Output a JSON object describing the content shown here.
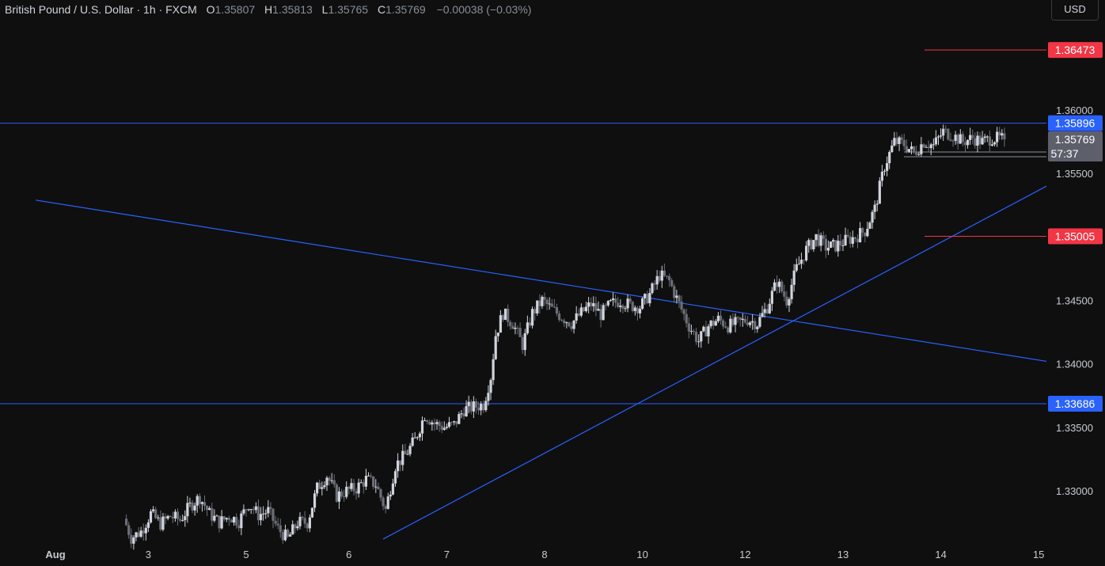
{
  "header": {
    "symbol": "British Pound / U.S. Dollar · 1h · FXCM",
    "open_label": "O",
    "open": "1.35807",
    "high_label": "H",
    "high": "1.35813",
    "low_label": "L",
    "low": "1.35765",
    "close_label": "C",
    "close": "1.35769",
    "change": "−0.00038 (−0.03%)"
  },
  "currency_button": "USD",
  "colors": {
    "background": "#0f0f0f",
    "candle_up": "#d1d4dc",
    "candle_down": "#6b6f78",
    "blue_level": "#2962ff",
    "red_level": "#f23645",
    "current_price_badge": "#5d606b"
  },
  "chart_data": {
    "type": "candlestick",
    "y_axis": {
      "min": 1.3262,
      "max": 1.3672,
      "ticks": [
        "1.36000",
        "1.35500",
        "1.35000",
        "1.34500",
        "1.34000",
        "1.33500",
        "1.33000"
      ]
    },
    "x_axis": {
      "labels": [
        {
          "text": "Aug",
          "x": 0
        },
        {
          "text": "3",
          "x": 19
        },
        {
          "text": "5",
          "x": 39
        },
        {
          "text": "6",
          "x": 60
        },
        {
          "text": "7",
          "x": 80
        },
        {
          "text": "8",
          "x": 100
        },
        {
          "text": "10",
          "x": 120
        },
        {
          "text": "12",
          "x": 141
        },
        {
          "text": "13",
          "x": 161
        },
        {
          "text": "14",
          "x": 181
        },
        {
          "text": "15",
          "x": 201
        }
      ]
    },
    "levels": [
      {
        "label": "1.36473",
        "value": 1.36473,
        "color": "red",
        "style": "short"
      },
      {
        "label": "1.35896",
        "value": 1.35896,
        "color": "blue",
        "style": "full"
      },
      {
        "label": "1.35005",
        "value": 1.35005,
        "color": "red",
        "style": "short"
      },
      {
        "label": "1.33686",
        "value": 1.33686,
        "color": "blue",
        "style": "full"
      }
    ],
    "current_price": {
      "label": "1.35769",
      "countdown": "57:37",
      "value": 1.35769
    },
    "trendlines": [
      {
        "name": "descending",
        "from": {
          "x": -4,
          "y": 1.3529
        },
        "to": {
          "x": 212,
          "y": 1.3402
        }
      },
      {
        "name": "ascending",
        "from": {
          "x": 67,
          "y": 1.3262
        },
        "to": {
          "x": 212,
          "y": 1.354
        }
      }
    ],
    "anchors": [
      [
        14.5,
        1.3278
      ],
      [
        16,
        1.3263
      ],
      [
        18,
        1.3268
      ],
      [
        20,
        1.3282
      ],
      [
        22,
        1.3274
      ],
      [
        24,
        1.328
      ],
      [
        26,
        1.3277
      ],
      [
        28,
        1.3288
      ],
      [
        30,
        1.3295
      ],
      [
        32,
        1.3282
      ],
      [
        34,
        1.3275
      ],
      [
        36,
        1.328
      ],
      [
        38,
        1.3276
      ],
      [
        40,
        1.329
      ],
      [
        42,
        1.3281
      ],
      [
        44,
        1.3284
      ],
      [
        46,
        1.327
      ],
      [
        48,
        1.3262
      ],
      [
        50,
        1.3275
      ],
      [
        52,
        1.3275
      ],
      [
        54,
        1.3302
      ],
      [
        56,
        1.3312
      ],
      [
        58,
        1.3296
      ],
      [
        60,
        1.33
      ],
      [
        62,
        1.3302
      ],
      [
        64,
        1.3309
      ],
      [
        66,
        1.3305
      ],
      [
        68,
        1.3285
      ],
      [
        70,
        1.332
      ],
      [
        72,
        1.3328
      ],
      [
        74,
        1.334
      ],
      [
        76,
        1.336
      ],
      [
        78,
        1.3353
      ],
      [
        80,
        1.335
      ],
      [
        82,
        1.3352
      ],
      [
        84,
        1.3364
      ],
      [
        86,
        1.3366
      ],
      [
        88,
        1.3368
      ],
      [
        89.5,
        1.339
      ],
      [
        90.5,
        1.3423
      ],
      [
        92,
        1.344
      ],
      [
        94,
        1.3432
      ],
      [
        96,
        1.3415
      ],
      [
        98,
        1.344
      ],
      [
        100,
        1.345
      ],
      [
        102,
        1.3443
      ],
      [
        104,
        1.3437
      ],
      [
        106,
        1.3432
      ],
      [
        108,
        1.344
      ],
      [
        110,
        1.3447
      ],
      [
        112,
        1.3439
      ],
      [
        114,
        1.3447
      ],
      [
        116,
        1.345
      ],
      [
        118,
        1.3446
      ],
      [
        120,
        1.3445
      ],
      [
        122,
        1.3455
      ],
      [
        124,
        1.347
      ],
      [
        126,
        1.3465
      ],
      [
        128,
        1.3447
      ],
      [
        130,
        1.343
      ],
      [
        132,
        1.3418
      ],
      [
        134,
        1.343
      ],
      [
        136,
        1.3435
      ],
      [
        138,
        1.343
      ],
      [
        140,
        1.3432
      ],
      [
        142,
        1.3435
      ],
      [
        144,
        1.3432
      ],
      [
        146,
        1.3445
      ],
      [
        148,
        1.3465
      ],
      [
        150,
        1.345
      ],
      [
        152,
        1.3475
      ],
      [
        154,
        1.349
      ],
      [
        156,
        1.35
      ],
      [
        158,
        1.3492
      ],
      [
        160,
        1.3493
      ],
      [
        162,
        1.3497
      ],
      [
        164,
        1.35
      ],
      [
        166,
        1.3505
      ],
      [
        168,
        1.3522
      ],
      [
        170,
        1.3556
      ],
      [
        172,
        1.3575
      ],
      [
        174,
        1.3573
      ],
      [
        176,
        1.3566
      ],
      [
        178,
        1.3575
      ],
      [
        180,
        1.3572
      ],
      [
        182,
        1.3583
      ],
      [
        184,
        1.358
      ],
      [
        186,
        1.3575
      ],
      [
        188,
        1.3578
      ],
      [
        190,
        1.3575
      ],
      [
        192,
        1.3578
      ],
      [
        194,
        1.3577
      ]
    ]
  }
}
